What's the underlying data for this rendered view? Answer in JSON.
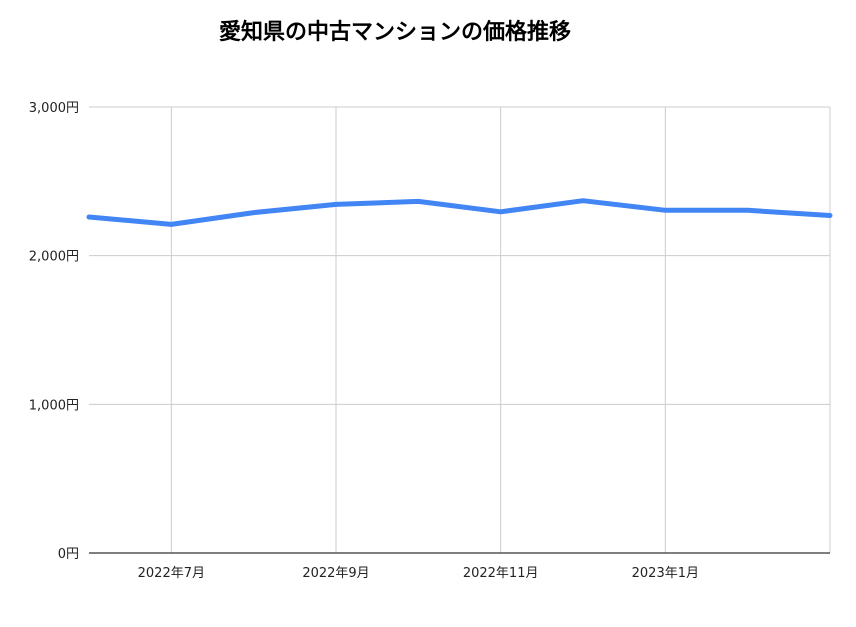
{
  "chart_data": {
    "type": "line",
    "title": "愛知県の中古マンションの価格推移",
    "xlabel": "",
    "ylabel": "",
    "x": [
      "2022年6月",
      "2022年7月",
      "2022年8月",
      "2022年9月",
      "2022年10月",
      "2022年11月",
      "2022年12月",
      "2023年1月",
      "2023年2月",
      "2023年3月"
    ],
    "series": [
      {
        "values": [
          2260,
          2210,
          2290,
          2345,
          2365,
          2295,
          2370,
          2305,
          2305,
          2270
        ]
      }
    ],
    "x_tick_labels": [
      "2022年7月",
      "2022年9月",
      "2022年11月",
      "2023年1月"
    ],
    "y_ticks": [
      0,
      1000,
      2000,
      3000
    ],
    "y_tick_labels": [
      "0円",
      "1,000円",
      "2,000円",
      "3,000円"
    ],
    "ylim": [
      0,
      3000
    ],
    "grid": true,
    "colors": {
      "line": "#4285f4",
      "grid": "#cccccc",
      "axis": "#333333"
    }
  }
}
